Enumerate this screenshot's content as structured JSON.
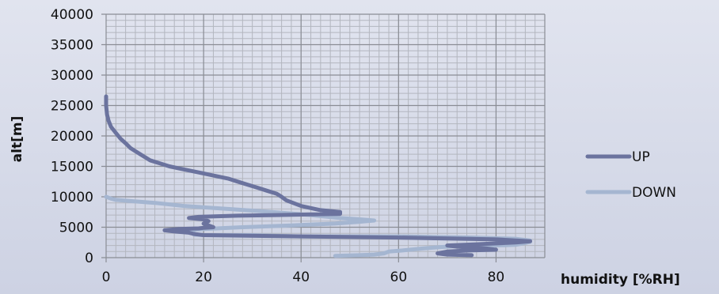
{
  "chart_data": {
    "type": "line",
    "xlabel": "humidity [%RH]",
    "ylabel": "alt[m]",
    "xlim": [
      0,
      90
    ],
    "ylim": [
      0,
      40000
    ],
    "x_ticks": [
      0,
      20,
      40,
      60,
      80
    ],
    "y_ticks": [
      0,
      5000,
      10000,
      15000,
      20000,
      25000,
      30000,
      35000,
      40000
    ],
    "y_minor_step": 1000,
    "x_minor_step": 2,
    "grid": true,
    "legend_position": "right",
    "series": [
      {
        "name": "UP",
        "color": "#6b739e",
        "stroke_width": 5,
        "points": [
          [
            75,
            400
          ],
          [
            70,
            500
          ],
          [
            68,
            700
          ],
          [
            70,
            1000
          ],
          [
            75,
            1200
          ],
          [
            80,
            1300
          ],
          [
            78,
            1500
          ],
          [
            72,
            1800
          ],
          [
            70,
            2000
          ],
          [
            76,
            2200
          ],
          [
            84,
            2500
          ],
          [
            87,
            2700
          ],
          [
            80,
            3000
          ],
          [
            60,
            3300
          ],
          [
            40,
            3500
          ],
          [
            20,
            3700
          ],
          [
            18,
            3900
          ],
          [
            17,
            4100
          ],
          [
            14,
            4300
          ],
          [
            12,
            4500
          ],
          [
            15,
            4700
          ],
          [
            19,
            4800
          ],
          [
            20,
            4900
          ],
          [
            22,
            5000
          ],
          [
            21,
            5300
          ],
          [
            20,
            5600
          ],
          [
            21,
            6000
          ],
          [
            20,
            6300
          ],
          [
            17,
            6500
          ],
          [
            19,
            6700
          ],
          [
            27,
            6900
          ],
          [
            35,
            7000
          ],
          [
            42,
            7100
          ],
          [
            48,
            7200
          ],
          [
            48,
            7500
          ],
          [
            44,
            7800
          ],
          [
            40,
            8500
          ],
          [
            37,
            9400
          ],
          [
            36,
            10000
          ],
          [
            35,
            10500
          ],
          [
            33,
            11000
          ],
          [
            31,
            11500
          ],
          [
            29,
            12000
          ],
          [
            27,
            12500
          ],
          [
            25,
            13000
          ],
          [
            22,
            13500
          ],
          [
            19,
            14000
          ],
          [
            16,
            14500
          ],
          [
            13,
            15000
          ],
          [
            11,
            15500
          ],
          [
            9,
            16000
          ],
          [
            7,
            17000
          ],
          [
            6,
            17500
          ],
          [
            5,
            18000
          ],
          [
            4,
            18800
          ],
          [
            3,
            19500
          ],
          [
            2,
            20500
          ],
          [
            1,
            21500
          ],
          [
            0.5,
            22500
          ],
          [
            0.2,
            23500
          ],
          [
            0,
            25000
          ],
          [
            0,
            26500
          ]
        ]
      },
      {
        "name": "DOWN",
        "color": "#a5b6d1",
        "stroke_width": 5,
        "points": [
          [
            47,
            300
          ],
          [
            52,
            400
          ],
          [
            55,
            500
          ],
          [
            57,
            700
          ],
          [
            58,
            1000
          ],
          [
            61,
            1200
          ],
          [
            65,
            1500
          ],
          [
            68,
            1700
          ],
          [
            72,
            1900
          ],
          [
            80,
            2000
          ],
          [
            84,
            2100
          ],
          [
            86,
            2400
          ],
          [
            87,
            2600
          ],
          [
            87,
            2800
          ],
          [
            84,
            3100
          ],
          [
            75,
            3300
          ],
          [
            60,
            3500
          ],
          [
            40,
            3500
          ],
          [
            30,
            3700
          ],
          [
            20,
            3700
          ],
          [
            18,
            3800
          ],
          [
            18,
            4000
          ],
          [
            17,
            4200
          ],
          [
            16,
            4500
          ],
          [
            20,
            4700
          ],
          [
            28,
            5000
          ],
          [
            38,
            5300
          ],
          [
            47,
            5600
          ],
          [
            52,
            5900
          ],
          [
            55,
            6100
          ],
          [
            52,
            6300
          ],
          [
            48,
            6500
          ],
          [
            42,
            7000
          ],
          [
            34,
            7500
          ],
          [
            25,
            8000
          ],
          [
            16,
            8500
          ],
          [
            10,
            9000
          ],
          [
            5,
            9300
          ],
          [
            2,
            9500
          ],
          [
            1,
            9700
          ],
          [
            0,
            10000
          ]
        ]
      }
    ]
  }
}
